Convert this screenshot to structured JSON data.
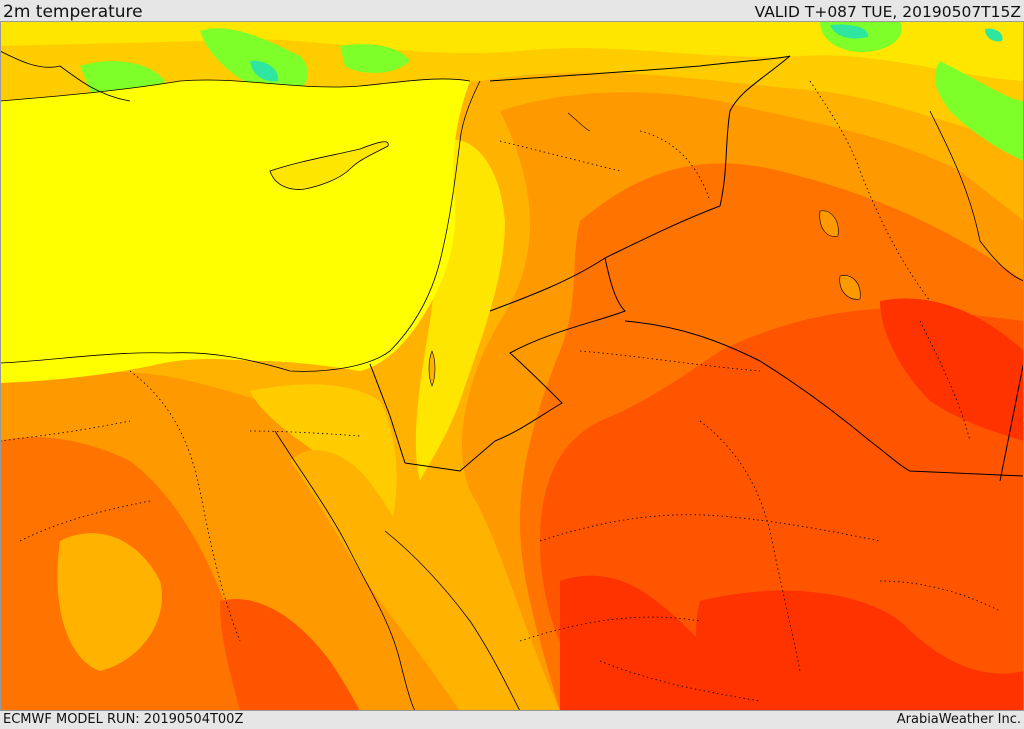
{
  "header": {
    "title": "2m temperature",
    "valid": "VALID T+087 TUE, 20190507T15Z"
  },
  "footer": {
    "model_run": "ECMWF MODEL RUN: 20190504T00Z",
    "credit": "ArabiaWeather Inc."
  },
  "colors": {
    "sea": "#ffff00",
    "cool_green": "#7fff2a",
    "cool_cyan": "#2ee6a0",
    "light_yellow": "#ffe600",
    "gold": "#ffcc00",
    "amber": "#ffb300",
    "orange": "#ff9900",
    "dark_orange": "#ff7300",
    "red_orange": "#ff5500",
    "red": "#ff3300",
    "border": "#000000"
  }
}
